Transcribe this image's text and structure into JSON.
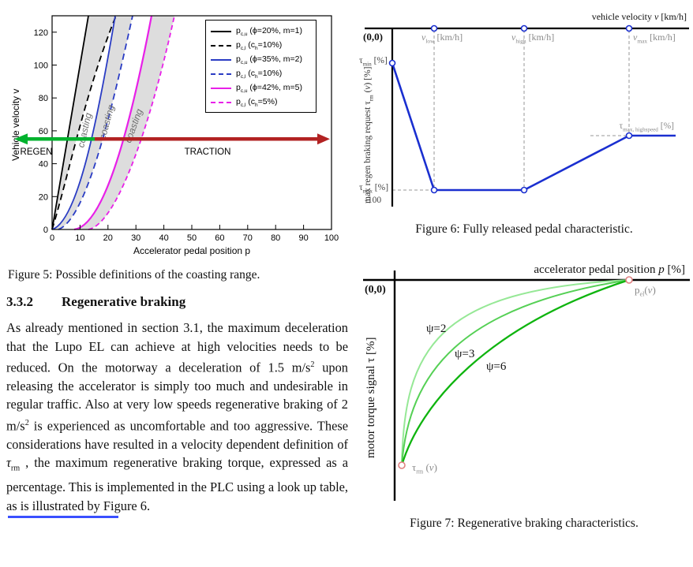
{
  "colors": {
    "black_curve": "#000000",
    "blue_curve": "#2a3cc4",
    "magenta_curve": "#e820e8",
    "regen_green": "#00b22d",
    "traction_red": "#b22222",
    "coasting_fill": "#dddddd",
    "fig6_blue": "#1a2fd0",
    "green_light": "#96e896",
    "green_mid": "#55d055",
    "green_dark": "#0fb40f",
    "marker_pink": "#e08080",
    "link_blue": "#3a50ff"
  },
  "figure5": {
    "caption": "Figure 5: Possible definitions of the coasting range.",
    "xlabel": "Accelerator pedal position p",
    "ylabel": "Vehicle velocity v",
    "xticks": [
      "0",
      "10",
      "20",
      "30",
      "40",
      "50",
      "60",
      "70",
      "80",
      "90",
      "100"
    ],
    "yticks": [
      "0",
      "20",
      "40",
      "60",
      "80",
      "100",
      "120"
    ],
    "coasting": "coasting",
    "regen": "REGEN",
    "traction": "TRACTION",
    "legend": [
      {
        "label_html": "p<sub>c,u</sub> (ϕ=20%, m=1)"
      },
      {
        "label_html": "p<sub>c,l</sub> (c<sub>h</sub>=10%)"
      },
      {
        "label_html": "p<sub>c,u</sub> (ϕ=35%, m=2)"
      },
      {
        "label_html": "p<sub>c,l</sub> (c<sub>h</sub>=10%)"
      },
      {
        "label_html": "p<sub>c,u</sub> (ϕ=42%, m=5)"
      },
      {
        "label_html": "p<sub>c,l</sub> (c<sub>h</sub>=5%)"
      }
    ]
  },
  "section": {
    "number": "3.3.2",
    "title": "Regenerative braking",
    "paragraph_html": "As already mentioned in section 3.1, the maximum deceleration that the Lupo EL can achieve at high velocities needs to be reduced. On the motorway a deceleration of 1.5 m/s<sup>2</sup> upon releasing the accelerator is simply too much and undesirable in regular traffic. Also at very low speeds regenerative braking of 2 m/s<sup>2</sup> is experienced as uncomfortable and too aggressive. These considerations have resulted in a velocity dependent definition of <i>τ</i><sub>rm</sub> , the maximum regenerative braking torque, expressed as a percentage. This is implemented in the PLC using a look up table, as is illustrated by Figure 6."
  },
  "figure6": {
    "caption": "Figure 6: Fully released pedal characteristic.",
    "axis_label_html": "vehicle velocity <i>v</i> [km/h]",
    "origin": "(0,0)",
    "v_low_html": "<i>v</i><sub>low</sub> [km/h]",
    "v_high_html": "<i>v</i><sub>high</sub> [km/h]",
    "v_max_html": "<i>v</i><sub>max</sub> [km/h]",
    "tau_min_html": "τ<sub>min</sub> [%]",
    "tau_max_html": "τ<sub>max</sub> [%]",
    "minus100": "-100",
    "tau_max_highspeed_html": "τ<sub>max, highspeed</sub> [%]",
    "ylabel_html": "max regen braking request τ<sub>rm</sub> (<i>v</i>) [%]"
  },
  "figure7": {
    "caption": "Figure 7: Regenerative braking characteristics.",
    "axis_label_html": "accelerator pedal position <i>p</i> [%]",
    "origin": "(0,0)",
    "ylabel_html": "motor torque signal τ [%]",
    "psi2": "ψ=2",
    "psi3": "ψ=3",
    "psi6": "ψ=6",
    "p_el_html": "p<sub>el</sub>(<i>v</i>)",
    "tau_rm_html": "τ<sub>rm</sub> (<i>v</i>)"
  },
  "chart_data": [
    {
      "figure": "Figure 5",
      "type": "line",
      "title": "Possible definitions of the coasting range",
      "xlabel": "Accelerator pedal position p",
      "ylabel": "Vehicle velocity v",
      "xlim": [
        0,
        100
      ],
      "ylim": [
        0,
        130
      ],
      "xticks": [
        0,
        10,
        20,
        30,
        40,
        50,
        60,
        70,
        80,
        90,
        100
      ],
      "yticks": [
        0,
        20,
        40,
        60,
        80,
        100,
        120
      ],
      "legend_position": "upper right",
      "grid": false,
      "series": [
        {
          "name": "p_c,u (phi=20%, m=1)",
          "style": "solid",
          "color": "#000000",
          "points": [
            [
              0,
              0
            ],
            [
              7,
              65
            ],
            [
              13,
              130
            ]
          ]
        },
        {
          "name": "p_c,l (c_h=10%)",
          "style": "dashed",
          "color": "#000000",
          "points": [
            [
              0,
              0
            ],
            [
              10,
              48
            ],
            [
              17,
              90
            ],
            [
              23,
              130
            ]
          ]
        },
        {
          "name": "p_c,u (phi=35%, m=2)",
          "style": "solid",
          "color": "#2a3cc4",
          "points": [
            [
              0,
              0
            ],
            [
              10,
              26
            ],
            [
              15,
              58
            ],
            [
              20,
              100
            ],
            [
              23,
              130
            ]
          ]
        },
        {
          "name": "p_c,l (c_h=10%)",
          "style": "dashed",
          "color": "#2a3cc4",
          "points": [
            [
              2,
              0
            ],
            [
              14,
              32
            ],
            [
              20,
              66
            ],
            [
              25,
              100
            ],
            [
              29,
              130
            ]
          ]
        },
        {
          "name": "p_c,u (phi=42%, m=5)",
          "style": "solid",
          "color": "#e820e8",
          "points": [
            [
              8,
              0
            ],
            [
              20,
              14
            ],
            [
              28,
              55
            ],
            [
              33,
              100
            ],
            [
              36,
              130
            ]
          ]
        },
        {
          "name": "p_c,l (c_h=5%)",
          "style": "dashed",
          "color": "#e820e8",
          "points": [
            [
              13,
              0
            ],
            [
              26,
              18
            ],
            [
              35,
              62
            ],
            [
              41,
              105
            ],
            [
              44,
              130
            ]
          ]
        }
      ],
      "shaded_regions": "grey band labeled 'coasting' between each solid (p_c,u) and dashed (p_c,l) pair",
      "annotations": [
        {
          "text": "REGEN",
          "arrow": "green, pointing left along v=55 from p=15 to left edge"
        },
        {
          "text": "TRACTION",
          "arrow": "dark red, pointing right along v=55 from p=15 to p=100"
        }
      ]
    },
    {
      "figure": "Figure 6",
      "type": "line",
      "title": "Fully released pedal characteristic",
      "xlabel": "vehicle velocity v [km/h]",
      "ylabel": "max regen braking request tau_rm(v) [%]",
      "ylim_label": "-100 at tau_max level",
      "series": [
        {
          "name": "tau_rm(v)",
          "color": "#1a2fd0",
          "points_symbolic": [
            [
              "0",
              "tau_min"
            ],
            [
              "v_low",
              "tau_max (-100)"
            ],
            [
              "v_high",
              "tau_max (-100)"
            ],
            [
              "v_max",
              "tau_max_highspeed"
            ],
            [
              "> v_max",
              "tau_max_highspeed"
            ]
          ]
        }
      ],
      "markers": "open circles at breakpoints and at v_low, v_high, v_max on the velocity axis; grey dashed guide lines"
    },
    {
      "figure": "Figure 7",
      "type": "line",
      "title": "Regenerative braking characteristics",
      "xlabel": "accelerator pedal position p [%]",
      "ylabel": "motor torque signal tau [%]",
      "series": [
        {
          "name": "psi=2",
          "color": "#96e896",
          "shape": "most bowed concave curve from tau_rm(v) to p_el(v)"
        },
        {
          "name": "psi=3",
          "color": "#55d055",
          "shape": "medium bowed concave curve"
        },
        {
          "name": "psi=6",
          "color": "#0fb40f",
          "shape": "least bowed concave curve"
        }
      ],
      "endpoints": [
        "tau_rm(v) open circle lower left",
        "p_el(v) open circle on top axis upper right"
      ]
    }
  ]
}
